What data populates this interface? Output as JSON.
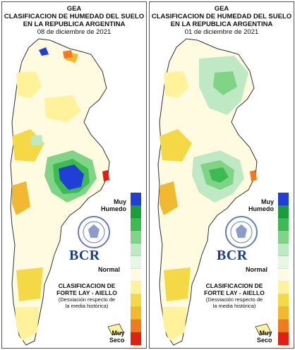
{
  "panels": [
    {
      "org": "GEA",
      "title_line1": "CLASIFICACION DE HUMEDAD DEL SUELO",
      "title_line2": "EN LA REPUBLICA ARGENTINA",
      "date": "08 de diciembre de 2021",
      "legend": {
        "top_label_1": "Muy",
        "top_label_2": "Humedo",
        "mid_label": "Normal",
        "bottom_label_1": "Muy",
        "bottom_label_2": "Seco"
      },
      "logo_text": "BCR",
      "credit_line1": "CLASIFICACION DE",
      "credit_line2": "FORTE LAY - AIELLO",
      "credit_line3": "(Desviación respecto de",
      "credit_line4": "la media histórica)"
    },
    {
      "org": "GEA",
      "title_line1": "CLASIFICACION DE HUMEDAD DEL SUELO",
      "title_line2": "EN LA REPUBLICA ARGENTINA",
      "date": "01 de diciembre de 2021",
      "legend": {
        "top_label_1": "Muy",
        "top_label_2": "Humedo",
        "mid_label": "Normal",
        "bottom_label_1": "Muy",
        "bottom_label_2": "Seco"
      },
      "logo_text": "BCR",
      "credit_line1": "CLASIFICACION DE",
      "credit_line2": "FORTE LAY - AIELLO",
      "credit_line3": "(Desviación respecto de",
      "credit_line4": "la media histórica)"
    }
  ],
  "legend_colors": [
    "#1f3fd6",
    "#1f5fe0",
    "#1a9e3a",
    "#3dbb52",
    "#7fd486",
    "#bfe8c4",
    "#e8f6e6",
    "#fffbe0",
    "#fff29a",
    "#f4d845",
    "#f2b830",
    "#f07a20",
    "#e02010"
  ],
  "palette": {
    "very_wet": "#1f3fd6",
    "wet": "#3dbb52",
    "slightly_wet": "#bfe8c4",
    "normal": "#fffbe0",
    "slightly_dry": "#fff29a",
    "dry": "#f4d845",
    "very_dry": "#e02010",
    "logo": "#1d3c8a"
  }
}
